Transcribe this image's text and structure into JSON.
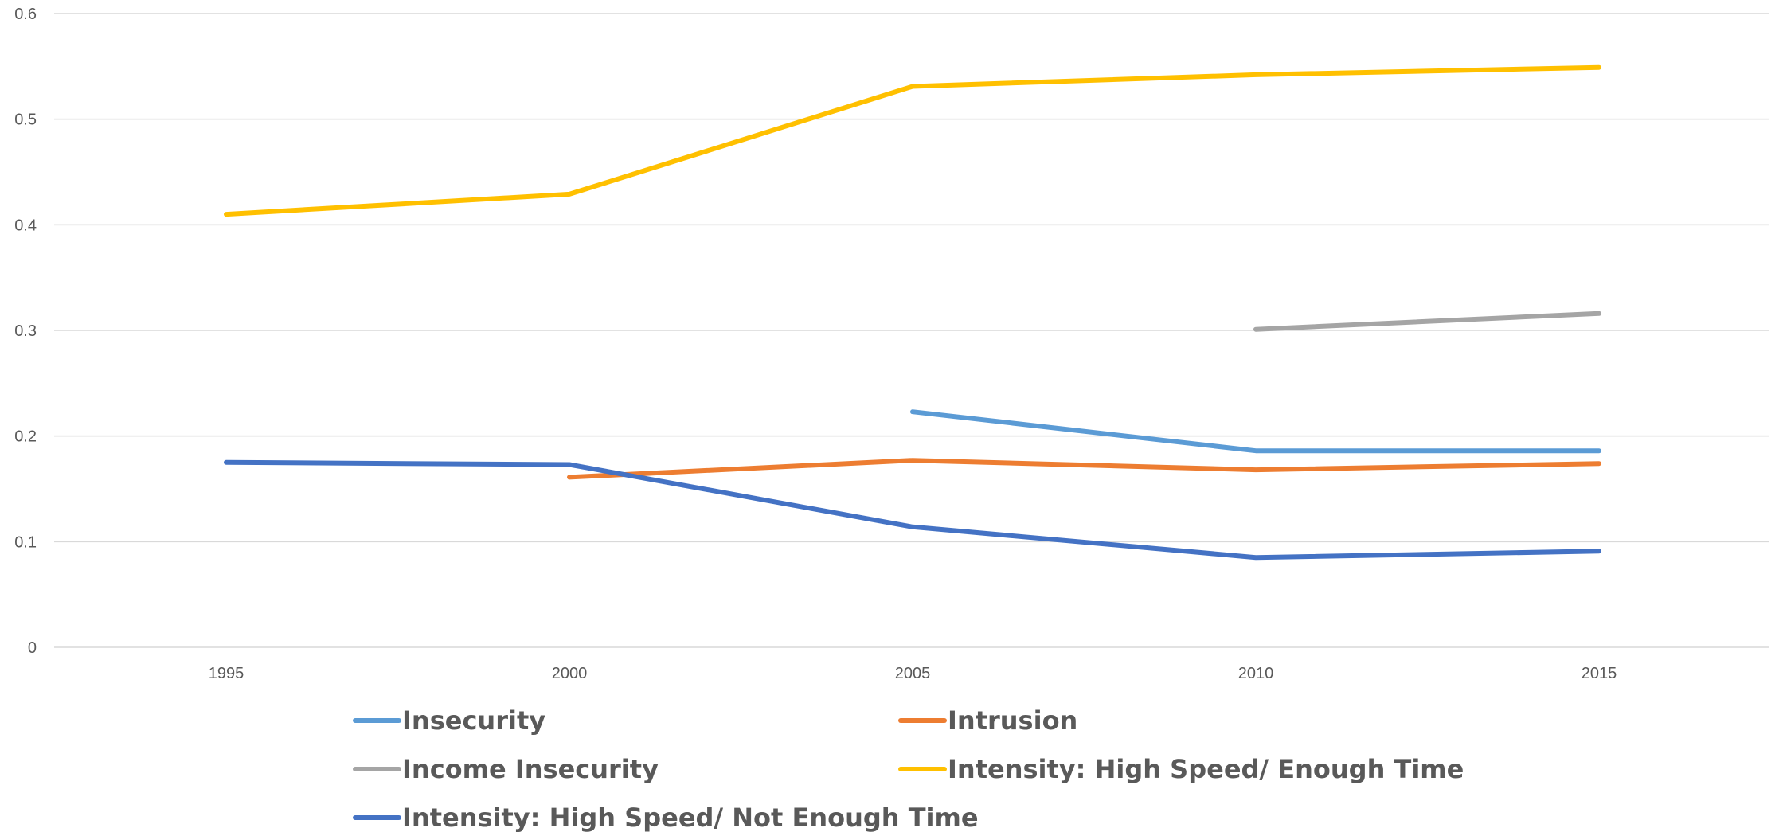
{
  "chart_data": {
    "type": "line",
    "x": [
      1995,
      2000,
      2005,
      2010,
      2015
    ],
    "x_tick_labels": [
      "1995",
      "2000",
      "2005",
      "2010",
      "2015"
    ],
    "y_tick_labels": [
      "0",
      "0.1",
      "0.2",
      "0.3",
      "0.4",
      "0.5",
      "0.6"
    ],
    "ylim": [
      0,
      0.6
    ],
    "grid": "horizontal",
    "legend_position": "bottom",
    "title": "",
    "xlabel": "",
    "ylabel": "",
    "series": [
      {
        "name": "Insecurity",
        "color": "#5B9BD5",
        "values": [
          null,
          null,
          0.223,
          0.186,
          0.186
        ]
      },
      {
        "name": "Intrusion",
        "color": "#ED7D31",
        "values": [
          null,
          0.161,
          0.177,
          0.168,
          0.174
        ]
      },
      {
        "name": "Income Insecurity",
        "color": "#A5A5A5",
        "values": [
          null,
          null,
          null,
          0.301,
          0.316
        ]
      },
      {
        "name": "Intensity: High Speed/ Enough Time",
        "color": "#FFC000",
        "values": [
          0.41,
          0.429,
          0.531,
          0.542,
          0.549
        ]
      },
      {
        "name": "Intensity: High Speed/ Not Enough Time",
        "color": "#4472C4",
        "values": [
          0.175,
          0.173,
          0.114,
          0.085,
          0.091
        ]
      }
    ]
  }
}
